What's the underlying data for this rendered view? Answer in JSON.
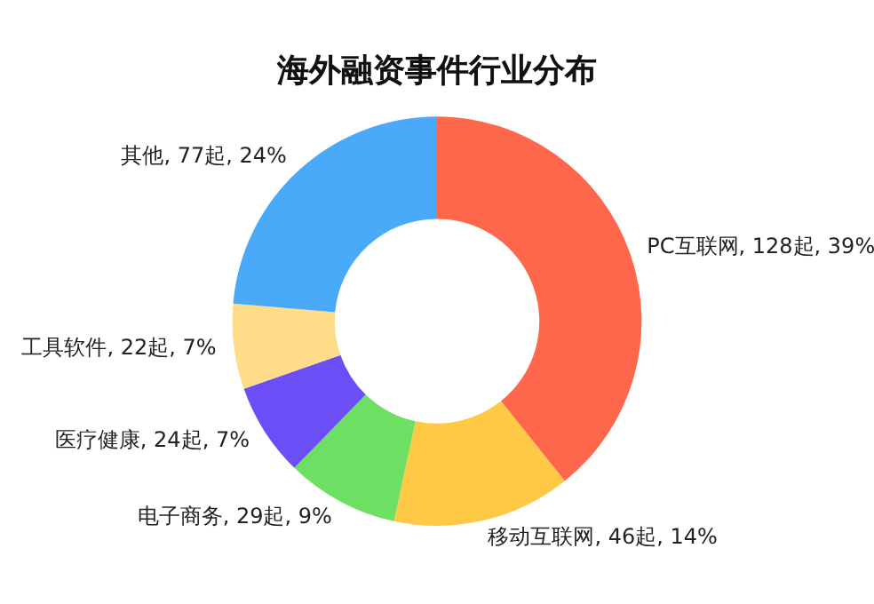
{
  "chart_data": {
    "type": "donut",
    "title": "海外融资事件行业分布",
    "categories": [
      "PC互联网",
      "移动互联网",
      "电子商务",
      "医疗健康",
      "工具软件",
      "其他"
    ],
    "values": [
      128,
      46,
      29,
      24,
      22,
      77
    ],
    "value_labels": [
      "128起, 39%",
      "46起, 14%",
      "29起, 9%",
      "24起, 7%",
      "22起, 7%",
      "77起, 24%"
    ],
    "colors": [
      "#ff674d",
      "#ffc845",
      "#6de064",
      "#6b4ef5",
      "#ffdc8a",
      "#4aa9f8"
    ],
    "legend": false
  }
}
